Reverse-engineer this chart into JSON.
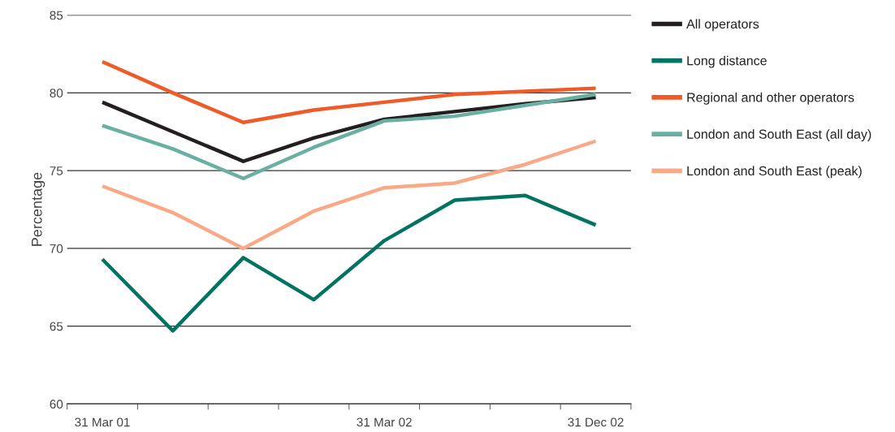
{
  "chart_data": {
    "type": "line",
    "ylabel": "Percentage",
    "categories": [
      "31 Mar 01",
      null,
      null,
      null,
      "31 Mar 02",
      null,
      null,
      "31 Dec 02"
    ],
    "series": [
      {
        "name": "All operators",
        "color": "#231f20",
        "values": [
          79.4,
          77.5,
          75.6,
          77.1,
          78.3,
          78.8,
          79.3,
          79.7
        ]
      },
      {
        "name": "Long distance",
        "color": "#007461",
        "values": [
          69.3,
          64.7,
          69.4,
          66.7,
          70.5,
          73.1,
          73.4,
          71.5
        ]
      },
      {
        "name": "Regional and other operators",
        "color": "#ef5a28",
        "values": [
          82.0,
          80.0,
          78.1,
          78.9,
          79.4,
          79.9,
          80.1,
          80.3
        ]
      },
      {
        "name": "London and South East (all day)",
        "color": "#69b0a2",
        "values": [
          77.9,
          76.4,
          74.5,
          76.5,
          78.2,
          78.5,
          79.2,
          79.9
        ]
      },
      {
        "name": "London and South East (peak)",
        "color": "#f9a985",
        "values": [
          74.0,
          72.3,
          70.0,
          72.4,
          73.9,
          74.2,
          75.4,
          76.9
        ]
      }
    ],
    "ylim": [
      60,
      85
    ],
    "yticks": [
      60,
      65,
      70,
      75,
      80,
      85
    ],
    "grid": "y",
    "legend": "right",
    "marker": "none",
    "line_style": "solid"
  }
}
